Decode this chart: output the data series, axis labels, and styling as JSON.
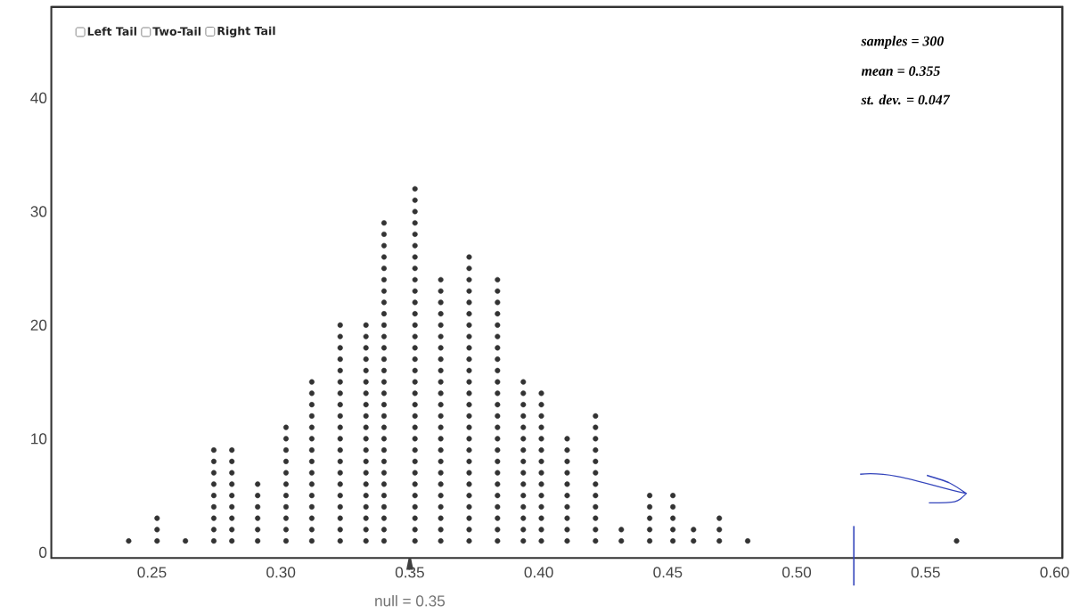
{
  "chart_data": {
    "type": "scatter",
    "x": [
      0.241,
      0.252,
      0.252,
      0.252,
      0.263,
      0.274,
      0.274,
      0.274,
      0.274,
      0.274,
      0.274,
      0.274,
      0.274,
      0.274,
      0.281,
      0.281,
      0.281,
      0.281,
      0.281,
      0.281,
      0.281,
      0.281,
      0.281,
      0.291,
      0.291,
      0.291,
      0.291,
      0.291,
      0.291,
      0.302,
      0.302,
      0.302,
      0.302,
      0.302,
      0.302,
      0.302,
      0.302,
      0.302,
      0.302,
      0.302,
      0.312,
      0.312,
      0.312,
      0.312,
      0.312,
      0.312,
      0.312,
      0.312,
      0.312,
      0.312,
      0.312,
      0.312,
      0.312,
      0.312,
      0.312,
      0.323,
      0.323,
      0.323,
      0.323,
      0.323,
      0.323,
      0.323,
      0.323,
      0.323,
      0.323,
      0.323,
      0.323,
      0.323,
      0.323,
      0.323,
      0.323,
      0.323,
      0.323,
      0.323,
      0.323,
      0.333,
      0.333,
      0.333,
      0.333,
      0.333,
      0.333,
      0.333,
      0.333,
      0.333,
      0.333,
      0.333,
      0.333,
      0.333,
      0.333,
      0.333,
      0.333,
      0.333,
      0.333,
      0.333,
      0.333,
      0.34,
      0.34,
      0.34,
      0.34,
      0.34,
      0.34,
      0.34,
      0.34,
      0.34,
      0.34,
      0.34,
      0.34,
      0.34,
      0.34,
      0.34,
      0.34,
      0.34,
      0.34,
      0.34,
      0.34,
      0.34,
      0.34,
      0.34,
      0.34,
      0.34,
      0.34,
      0.34,
      0.34,
      0.34,
      0.352,
      0.352,
      0.352,
      0.352,
      0.352,
      0.352,
      0.352,
      0.352,
      0.352,
      0.352,
      0.352,
      0.352,
      0.352,
      0.352,
      0.352,
      0.352,
      0.352,
      0.352,
      0.352,
      0.352,
      0.352,
      0.352,
      0.352,
      0.352,
      0.352,
      0.352,
      0.352,
      0.352,
      0.352,
      0.352,
      0.352,
      0.352,
      0.362,
      0.362,
      0.362,
      0.362,
      0.362,
      0.362,
      0.362,
      0.362,
      0.362,
      0.362,
      0.362,
      0.362,
      0.362,
      0.362,
      0.362,
      0.362,
      0.362,
      0.362,
      0.362,
      0.362,
      0.362,
      0.362,
      0.362,
      0.362,
      0.373,
      0.373,
      0.373,
      0.373,
      0.373,
      0.373,
      0.373,
      0.373,
      0.373,
      0.373,
      0.373,
      0.373,
      0.373,
      0.373,
      0.373,
      0.373,
      0.373,
      0.373,
      0.373,
      0.373,
      0.373,
      0.373,
      0.373,
      0.373,
      0.373,
      0.373,
      0.384,
      0.384,
      0.384,
      0.384,
      0.384,
      0.384,
      0.384,
      0.384,
      0.384,
      0.384,
      0.384,
      0.384,
      0.384,
      0.384,
      0.384,
      0.384,
      0.384,
      0.384,
      0.384,
      0.384,
      0.384,
      0.384,
      0.384,
      0.384,
      0.394,
      0.394,
      0.394,
      0.394,
      0.394,
      0.394,
      0.394,
      0.394,
      0.394,
      0.394,
      0.394,
      0.394,
      0.394,
      0.394,
      0.394,
      0.401,
      0.401,
      0.401,
      0.401,
      0.401,
      0.401,
      0.401,
      0.401,
      0.401,
      0.401,
      0.401,
      0.401,
      0.401,
      0.401,
      0.411,
      0.411,
      0.411,
      0.411,
      0.411,
      0.411,
      0.411,
      0.411,
      0.411,
      0.411,
      0.422,
      0.422,
      0.422,
      0.422,
      0.422,
      0.422,
      0.422,
      0.422,
      0.422,
      0.422,
      0.422,
      0.422,
      0.432,
      0.432,
      0.443,
      0.443,
      0.443,
      0.443,
      0.443,
      0.452,
      0.452,
      0.452,
      0.452,
      0.452,
      0.46,
      0.46,
      0.47,
      0.47,
      0.47,
      0.481,
      0.562
    ],
    "values": [
      1,
      1,
      2,
      3,
      1,
      1,
      2,
      3,
      4,
      5,
      6,
      7,
      8,
      9,
      1,
      2,
      3,
      4,
      5,
      6,
      7,
      8,
      9,
      1,
      2,
      3,
      4,
      5,
      6,
      1,
      2,
      3,
      4,
      5,
      6,
      7,
      8,
      9,
      10,
      11,
      1,
      2,
      3,
      4,
      5,
      6,
      7,
      8,
      9,
      10,
      11,
      12,
      13,
      14,
      15,
      1,
      2,
      3,
      4,
      5,
      6,
      7,
      8,
      9,
      10,
      11,
      12,
      13,
      14,
      15,
      16,
      17,
      18,
      19,
      20,
      1,
      2,
      3,
      4,
      5,
      6,
      7,
      8,
      9,
      10,
      11,
      12,
      13,
      14,
      15,
      16,
      17,
      18,
      19,
      20,
      1,
      2,
      3,
      4,
      5,
      6,
      7,
      8,
      9,
      10,
      11,
      12,
      13,
      14,
      15,
      16,
      17,
      18,
      19,
      20,
      21,
      22,
      23,
      24,
      25,
      26,
      27,
      28,
      29,
      1,
      2,
      3,
      4,
      5,
      6,
      7,
      8,
      9,
      10,
      11,
      12,
      13,
      14,
      15,
      16,
      17,
      18,
      19,
      20,
      21,
      22,
      23,
      24,
      25,
      26,
      27,
      28,
      29,
      30,
      31,
      32,
      1,
      2,
      3,
      4,
      5,
      6,
      7,
      8,
      9,
      10,
      11,
      12,
      13,
      14,
      15,
      16,
      17,
      18,
      19,
      20,
      21,
      22,
      23,
      24,
      1,
      2,
      3,
      4,
      5,
      6,
      7,
      8,
      9,
      10,
      11,
      12,
      13,
      14,
      15,
      16,
      17,
      18,
      19,
      20,
      21,
      22,
      23,
      24,
      25,
      26,
      1,
      2,
      3,
      4,
      5,
      6,
      7,
      8,
      9,
      10,
      11,
      12,
      13,
      14,
      15,
      16,
      17,
      18,
      19,
      20,
      21,
      22,
      23,
      24,
      1,
      2,
      3,
      4,
      5,
      6,
      7,
      8,
      9,
      10,
      11,
      12,
      13,
      14,
      15,
      1,
      2,
      3,
      4,
      5,
      6,
      7,
      8,
      9,
      10,
      11,
      12,
      13,
      14,
      1,
      2,
      3,
      4,
      5,
      6,
      7,
      8,
      9,
      10,
      1,
      2,
      3,
      4,
      5,
      6,
      7,
      8,
      9,
      10,
      11,
      12,
      1,
      2,
      1,
      2,
      3,
      4,
      5,
      1,
      2,
      3,
      4,
      5,
      1,
      2,
      1,
      2,
      3,
      1,
      1
    ],
    "color": "#333333",
    "xlim": [
      0.211,
      0.603
    ],
    "ylim": [
      -0.5,
      48
    ],
    "xticks": [
      {
        "value": 0.25,
        "label": "0.25"
      },
      {
        "value": 0.3,
        "label": "0.30"
      },
      {
        "value": 0.35,
        "label": "0.35"
      },
      {
        "value": 0.4,
        "label": "0.40"
      },
      {
        "value": 0.45,
        "label": "0.45"
      },
      {
        "value": 0.5,
        "label": "0.50"
      },
      {
        "value": 0.55,
        "label": "0.55"
      },
      {
        "value": 0.6,
        "label": "0.60"
      }
    ],
    "yticks": [
      0,
      10,
      20,
      30,
      40
    ],
    "annotations": [
      "Left Tail",
      "Two-Tail",
      "Right Tail",
      "samples = 300",
      "mean = 0.355",
      "st. dev. = 0.047",
      "null = 0.35"
    ]
  }
}
